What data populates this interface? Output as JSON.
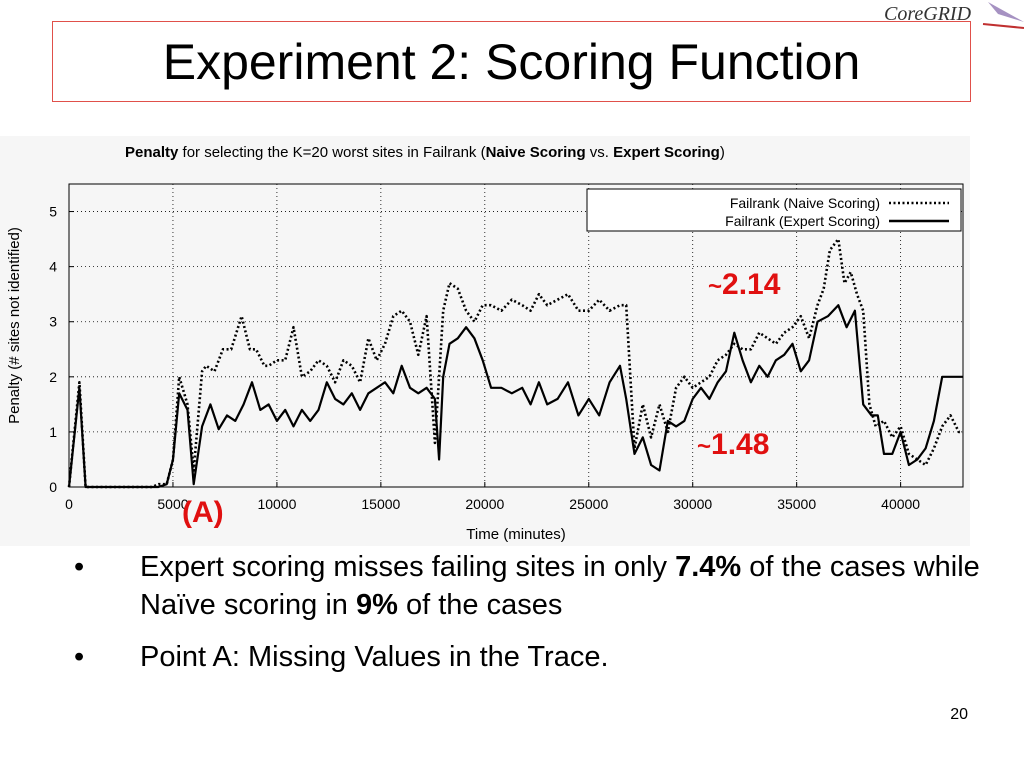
{
  "slide": {
    "title": "Experiment 2: Scoring Function",
    "logo_text": "CoreGRID",
    "page_number": "20"
  },
  "chart_title": {
    "part1": "Penalty",
    "part2": " for selecting the K=20 worst sites in Failrank (",
    "part3": "Naive Scoring",
    "part4": " vs. ",
    "part5": "Expert Scoring",
    "part6": ")"
  },
  "annotations": {
    "naive_avg": "2.14",
    "expert_avg": "1.48",
    "tilde": "~",
    "point_a": "(A)"
  },
  "bullets": [
    {
      "dot": "•",
      "pre": "Expert scoring misses failing sites in only ",
      "b1": "7.4%",
      "mid": " of the cases while Naïve scoring in ",
      "b2": "9%",
      "post": " of the cases"
    },
    {
      "dot": "•",
      "text": "Point A: Missing Values in the Trace."
    }
  ],
  "colors": {
    "title_border": "#e0504a",
    "annotation": "#e01010",
    "series": "#000000"
  },
  "chart_data": {
    "type": "line",
    "title": "Penalty for selecting the K=20 worst sites in Failrank (Naive Scoring vs. Expert Scoring)",
    "xlabel": "Time (minutes)",
    "ylabel": "Penalty (# sites not identified)",
    "xlim": [
      0,
      43000
    ],
    "ylim": [
      0,
      5.5
    ],
    "xticks": [
      0,
      5000,
      10000,
      15000,
      20000,
      25000,
      30000,
      35000,
      40000
    ],
    "xtick_labels": [
      "0",
      "5000",
      "10000",
      "15000",
      "20000",
      "25000",
      "30000",
      "35000",
      "40000"
    ],
    "yticks": [
      0,
      1,
      2,
      3,
      4,
      5
    ],
    "ytick_labels": [
      "0",
      "1",
      "2",
      "3",
      "4",
      "5"
    ],
    "grid": true,
    "legend_position": "top-right",
    "series": [
      {
        "name": "Failrank (Naive Scoring)",
        "style": "dotted",
        "x": [
          0,
          500,
          800,
          1500,
          2500,
          4000,
          4300,
          4700,
          5000,
          5300,
          5700,
          6000,
          6400,
          6600,
          7000,
          7400,
          7800,
          8300,
          8700,
          9000,
          9400,
          9600,
          10000,
          10400,
          10800,
          11200,
          11600,
          12000,
          12400,
          12800,
          13200,
          13600,
          14000,
          14400,
          14800,
          15200,
          15600,
          16000,
          16400,
          16800,
          17200,
          17600,
          17800,
          18000,
          18300,
          18700,
          19100,
          19500,
          19900,
          20300,
          20800,
          21300,
          21800,
          22200,
          22600,
          23000,
          23500,
          24000,
          24500,
          25000,
          25500,
          26000,
          26500,
          26800,
          27200,
          27600,
          28000,
          28400,
          28800,
          29200,
          29600,
          30000,
          30400,
          30800,
          31200,
          31600,
          32000,
          32400,
          32800,
          33200,
          33600,
          34000,
          34400,
          34800,
          35200,
          35600,
          36000,
          36300,
          36600,
          37000,
          37300,
          37600,
          37900,
          38200,
          38500,
          38800,
          39200,
          39600,
          40000,
          40400,
          40800,
          41200,
          41600,
          42000,
          42400,
          42800,
          43000
        ],
        "y": [
          0,
          1.9,
          0,
          0,
          0,
          0,
          0.05,
          0.05,
          0.5,
          2,
          1.5,
          0.3,
          2.1,
          2.2,
          2.1,
          2.5,
          2.5,
          3.1,
          2.5,
          2.5,
          2.2,
          2.2,
          2.3,
          2.3,
          2.9,
          2.0,
          2.1,
          2.3,
          2.2,
          1.9,
          2.3,
          2.2,
          1.9,
          2.7,
          2.3,
          2.6,
          3.1,
          3.2,
          3.0,
          2.4,
          3.1,
          0.8,
          2.0,
          3.2,
          3.7,
          3.6,
          3.2,
          3.0,
          3.3,
          3.3,
          3.2,
          3.4,
          3.3,
          3.2,
          3.5,
          3.3,
          3.4,
          3.5,
          3.2,
          3.2,
          3.4,
          3.2,
          3.3,
          3.3,
          0.7,
          1.5,
          0.9,
          1.5,
          1.0,
          1.8,
          2.0,
          1.8,
          1.9,
          2.0,
          2.3,
          2.4,
          2.6,
          2.5,
          2.5,
          2.8,
          2.7,
          2.6,
          2.8,
          2.9,
          3.1,
          2.7,
          3.3,
          3.6,
          4.3,
          4.5,
          3.7,
          3.9,
          3.5,
          3.2,
          1.5,
          1.1,
          1.2,
          0.9,
          1.1,
          0.6,
          0.5,
          0.4,
          0.7,
          1.1,
          1.3,
          1.0,
          1.0
        ]
      },
      {
        "name": "Failrank (Expert Scoring)",
        "style": "solid",
        "x": [
          0,
          500,
          800,
          1500,
          2500,
          4000,
          4300,
          4700,
          5000,
          5300,
          5700,
          6000,
          6400,
          6800,
          7200,
          7600,
          8000,
          8400,
          8800,
          9200,
          9600,
          10000,
          10400,
          10800,
          11200,
          11600,
          12000,
          12400,
          12800,
          13200,
          13600,
          14000,
          14400,
          14800,
          15200,
          15600,
          16000,
          16400,
          16800,
          17200,
          17600,
          17800,
          18000,
          18300,
          18700,
          19100,
          19500,
          19900,
          20300,
          20800,
          21300,
          21800,
          22200,
          22600,
          23000,
          23500,
          24000,
          24500,
          25000,
          25500,
          26000,
          26500,
          26800,
          27200,
          27600,
          28000,
          28400,
          28800,
          29200,
          29600,
          30000,
          30400,
          30800,
          31200,
          31600,
          32000,
          32400,
          32800,
          33200,
          33600,
          34000,
          34400,
          34800,
          35200,
          35600,
          36000,
          36500,
          37000,
          37400,
          37800,
          38200,
          38600,
          38900,
          39200,
          39600,
          40000,
          40400,
          40800,
          41200,
          41600,
          42000,
          42400,
          42800,
          43000
        ],
        "y": [
          0,
          1.8,
          0,
          0,
          0,
          0,
          0,
          0.05,
          0.5,
          1.7,
          1.4,
          0.05,
          1.1,
          1.5,
          1.05,
          1.3,
          1.2,
          1.5,
          1.9,
          1.4,
          1.5,
          1.2,
          1.4,
          1.1,
          1.4,
          1.2,
          1.4,
          1.9,
          1.6,
          1.5,
          1.7,
          1.4,
          1.7,
          1.8,
          1.9,
          1.7,
          2.2,
          1.8,
          1.7,
          1.8,
          1.6,
          0.5,
          2.0,
          2.6,
          2.7,
          2.9,
          2.7,
          2.3,
          1.8,
          1.8,
          1.7,
          1.8,
          1.5,
          1.9,
          1.5,
          1.6,
          1.9,
          1.3,
          1.6,
          1.3,
          1.9,
          2.2,
          1.6,
          0.6,
          0.9,
          0.4,
          0.3,
          1.2,
          1.1,
          1.2,
          1.6,
          1.8,
          1.6,
          1.9,
          2.1,
          2.8,
          2.3,
          1.9,
          2.2,
          2.0,
          2.3,
          2.4,
          2.6,
          2.1,
          2.3,
          3.0,
          3.1,
          3.3,
          2.9,
          3.2,
          1.5,
          1.3,
          1.3,
          0.6,
          0.6,
          1.0,
          0.4,
          0.5,
          0.7,
          1.2,
          2.0,
          2.0,
          2.0,
          2.0
        ]
      }
    ]
  }
}
